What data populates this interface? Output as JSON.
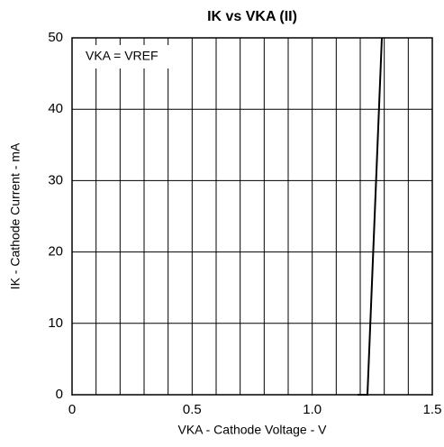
{
  "chart_data": {
    "type": "line",
    "title": "IK vs VKA (II)",
    "xlabel": "VKA - Cathode Voltage - V",
    "ylabel": "IK - Cathode Current - mA",
    "annotation": "VKA = VREF",
    "x": [
      1.19,
      1.23,
      1.29
    ],
    "series": [
      {
        "color": "#000000",
        "values": [
          0,
          0,
          50
        ]
      }
    ],
    "xlim": [
      0,
      1.5
    ],
    "xticks": [
      0,
      0.5,
      {
        "value": 1.0,
        "label": "1.0"
      },
      1.5
    ],
    "x_grid": [
      0.1,
      0.2,
      0.3,
      0.4,
      0.5,
      0.6,
      0.7,
      0.8,
      0.9,
      1.0,
      1.1,
      1.2,
      1.3,
      1.4
    ],
    "ylim": [
      0,
      50
    ],
    "yticks": [
      0,
      10,
      20,
      30,
      40,
      50
    ],
    "grid": true
  }
}
